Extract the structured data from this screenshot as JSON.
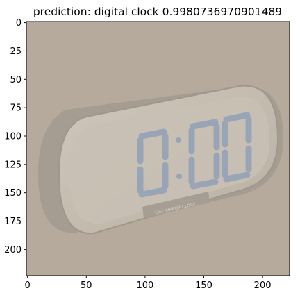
{
  "title": "prediction: digital clock 0.9980736970901489",
  "image": {
    "subject": "digital clock",
    "colors": {
      "background": "#b5aa9c",
      "clock_body": "#c4bbae",
      "clock_shadow": "#9f978b",
      "clock_face": "#c8c0b4",
      "digits": "#97a4b8",
      "label_plate": "#a69e92"
    },
    "display_text": "0:00",
    "label_text": "LED MIRROR CLOCK"
  },
  "axes": {
    "x_range": [
      0,
      224
    ],
    "y_range": [
      0,
      224
    ],
    "x_ticks": [
      "0",
      "50",
      "100",
      "150",
      "200"
    ],
    "y_ticks": [
      "0",
      "25",
      "50",
      "75",
      "100",
      "125",
      "150",
      "175",
      "200"
    ]
  }
}
